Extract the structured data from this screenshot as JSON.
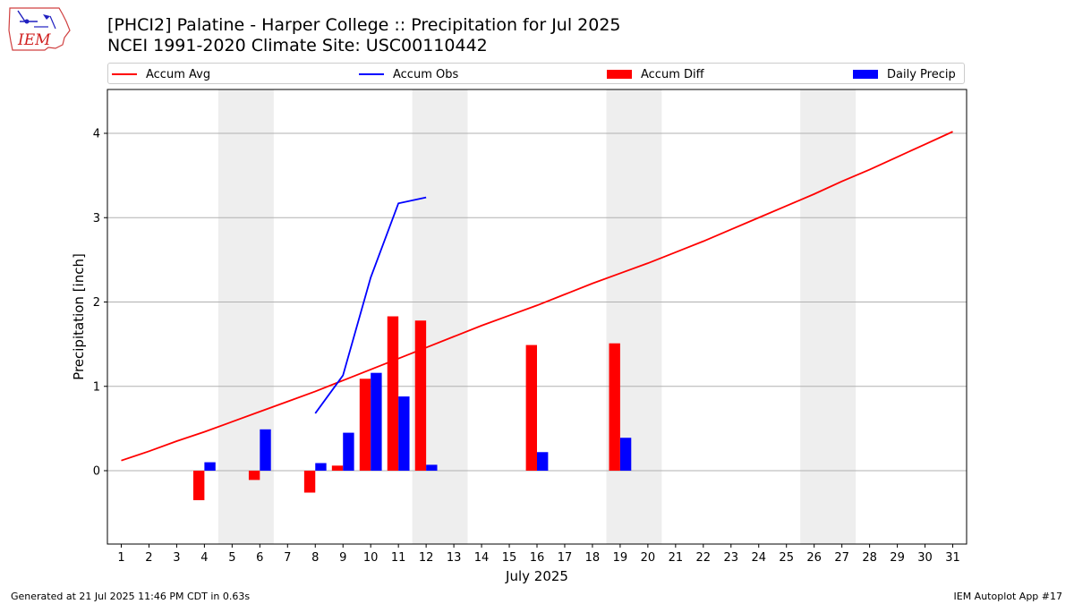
{
  "title_line1": "[PHCI2] Palatine - Harper College :: Precipitation for Jul 2025",
  "title_line2": "NCEI 1991-2020 Climate Site: USC00110442",
  "logo_text": "IEM",
  "footer_left": "Generated at 21 Jul 2025 11:46 PM CDT in 0.63s",
  "footer_right": "IEM Autoplot App #17",
  "legend": [
    {
      "label": "Accum Avg",
      "kind": "line",
      "color": "#ff0000"
    },
    {
      "label": "Accum Obs",
      "kind": "line",
      "color": "#0000ff"
    },
    {
      "label": "Accum Diff",
      "kind": "box",
      "color": "#ff0000"
    },
    {
      "label": "Daily Precip",
      "kind": "box",
      "color": "#0000ff"
    }
  ],
  "chart_data": {
    "type": "bar",
    "title": "[PHCI2] Palatine - Harper College :: Precipitation for Jul 2025",
    "subtitle": "NCEI 1991-2020 Climate Site: USC00110442",
    "xlabel": "July 2025",
    "ylabel": "Precipitation [inch]",
    "xlim": [
      0.5,
      31.5
    ],
    "ylim": [
      -0.87,
      4.52
    ],
    "y_ticks": [
      0,
      1,
      2,
      3,
      4
    ],
    "x_ticks": [
      1,
      2,
      3,
      4,
      5,
      6,
      7,
      8,
      9,
      10,
      11,
      12,
      13,
      14,
      15,
      16,
      17,
      18,
      19,
      20,
      21,
      22,
      23,
      24,
      25,
      26,
      27,
      28,
      29,
      30,
      31
    ],
    "grid": "horizontal",
    "legend_position": "top",
    "weekend_shading": [
      [
        4.5,
        6.5
      ],
      [
        11.5,
        13.5
      ],
      [
        18.5,
        20.5
      ],
      [
        25.5,
        27.5
      ]
    ],
    "accum_avg": {
      "name": "Accum Avg",
      "color": "#ff0000",
      "x": [
        1,
        2,
        3,
        4,
        5,
        6,
        7,
        8,
        9,
        10,
        11,
        12,
        13,
        14,
        15,
        16,
        17,
        18,
        19,
        20,
        21,
        22,
        23,
        24,
        25,
        26,
        27,
        28,
        29,
        30,
        31
      ],
      "y": [
        0.12,
        0.23,
        0.35,
        0.46,
        0.58,
        0.7,
        0.82,
        0.94,
        1.07,
        1.2,
        1.33,
        1.46,
        1.59,
        1.72,
        1.84,
        1.96,
        2.09,
        2.22,
        2.34,
        2.46,
        2.59,
        2.72,
        2.86,
        3.0,
        3.14,
        3.28,
        3.43,
        3.57,
        3.72,
        3.87,
        4.02
      ]
    },
    "accum_obs": {
      "name": "Accum Obs",
      "color": "#0000ff",
      "x": [
        8,
        9,
        10,
        11,
        12
      ],
      "y": [
        0.68,
        1.13,
        2.29,
        3.17,
        3.24
      ]
    },
    "accum_diff": {
      "name": "Accum Diff",
      "color": "#ff0000",
      "x": [
        4,
        6,
        8,
        9,
        10,
        11,
        12,
        16,
        19
      ],
      "y": [
        -0.35,
        -0.11,
        -0.26,
        0.06,
        1.09,
        1.83,
        1.78,
        1.49,
        1.51
      ]
    },
    "daily_precip": {
      "name": "Daily Precip",
      "color": "#0000ff",
      "x": [
        4,
        6,
        8,
        9,
        10,
        11,
        12,
        16,
        19
      ],
      "y": [
        0.1,
        0.49,
        0.09,
        0.45,
        1.16,
        0.88,
        0.07,
        0.22,
        0.39
      ]
    }
  }
}
